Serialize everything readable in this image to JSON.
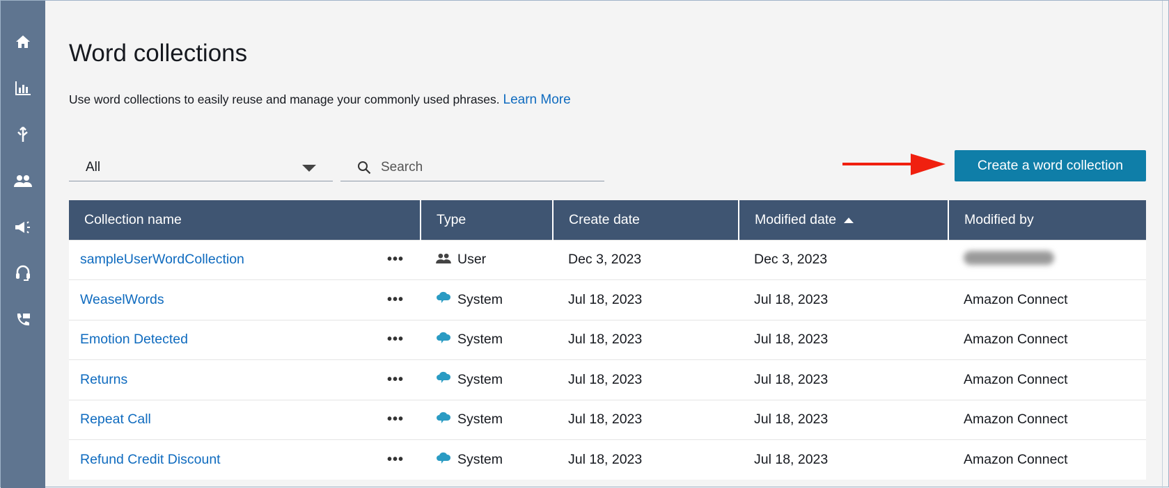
{
  "sidebar": {
    "items": [
      {
        "icon": "home-icon"
      },
      {
        "icon": "bar-chart-icon"
      },
      {
        "icon": "routing-icon"
      },
      {
        "icon": "users-icon"
      },
      {
        "icon": "megaphone-icon"
      },
      {
        "icon": "headset-icon"
      },
      {
        "icon": "phone-transfer-icon"
      }
    ]
  },
  "page": {
    "title": "Word collections",
    "description": "Use word collections to easily reuse and manage your commonly used phrases.",
    "learn_more": "Learn More"
  },
  "filter": {
    "selected": "All"
  },
  "search": {
    "placeholder": "Search",
    "value": ""
  },
  "create_button": "Create a word collection",
  "colors": {
    "header": "#3f5572",
    "sidebar": "#5f7590",
    "accent": "#0f7ea8",
    "link": "#0f6bbf",
    "annotation_arrow": "#f0200f"
  },
  "table": {
    "columns": [
      "Collection name",
      "Type",
      "Create date",
      "Modified date",
      "Modified by"
    ],
    "sort": {
      "column": "Modified date",
      "direction": "ascending"
    },
    "rows": [
      {
        "name": "sampleUserWordCollection",
        "type": "User",
        "type_icon": "users-icon",
        "created": "Dec 3, 2023",
        "modified": "Dec 3, 2023",
        "modified_by": ""
      },
      {
        "name": "WeaselWords",
        "type": "System",
        "type_icon": "cloud-icon",
        "created": "Jul 18, 2023",
        "modified": "Jul 18, 2023",
        "modified_by": "Amazon Connect"
      },
      {
        "name": "Emotion Detected",
        "type": "System",
        "type_icon": "cloud-icon",
        "created": "Jul 18, 2023",
        "modified": "Jul 18, 2023",
        "modified_by": "Amazon Connect"
      },
      {
        "name": "Returns",
        "type": "System",
        "type_icon": "cloud-icon",
        "created": "Jul 18, 2023",
        "modified": "Jul 18, 2023",
        "modified_by": "Amazon Connect"
      },
      {
        "name": "Repeat Call",
        "type": "System",
        "type_icon": "cloud-icon",
        "created": "Jul 18, 2023",
        "modified": "Jul 18, 2023",
        "modified_by": "Amazon Connect"
      },
      {
        "name": "Refund Credit Discount",
        "type": "System",
        "type_icon": "cloud-icon",
        "created": "Jul 18, 2023",
        "modified": "Jul 18, 2023",
        "modified_by": "Amazon Connect"
      }
    ]
  }
}
